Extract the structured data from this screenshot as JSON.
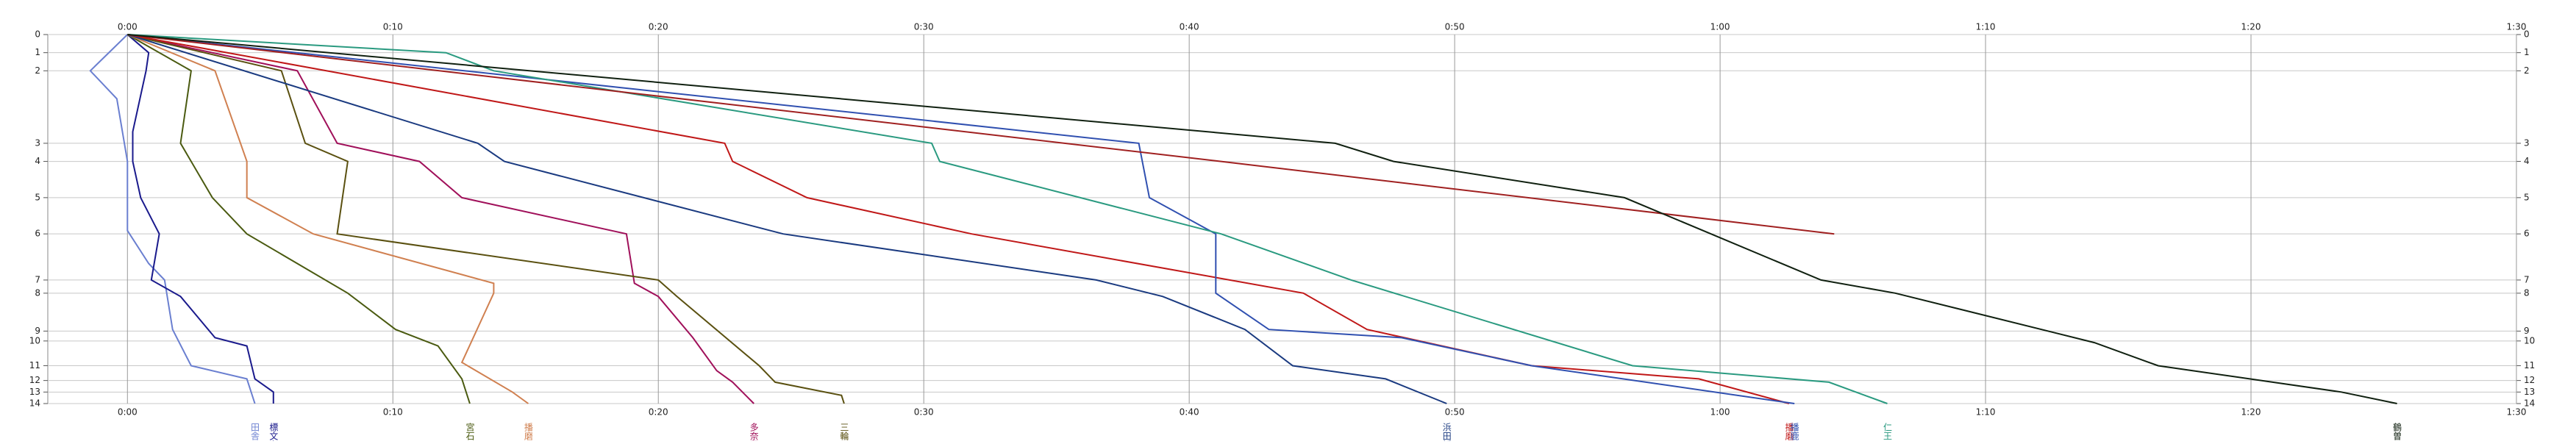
{
  "chart_data": {
    "type": "line",
    "xlim": [
      -3,
      90
    ],
    "xticks": [
      {
        "value": 0,
        "label": "0:00"
      },
      {
        "value": 10,
        "label": "0:10"
      },
      {
        "value": 20,
        "label": "0:20"
      },
      {
        "value": 30,
        "label": "0:30"
      },
      {
        "value": 40,
        "label": "0:40"
      },
      {
        "value": 50,
        "label": "0:50"
      },
      {
        "value": 60,
        "label": "1:00"
      },
      {
        "value": 70,
        "label": "1:10"
      },
      {
        "value": 80,
        "label": "1:20"
      },
      {
        "value": 90,
        "label": "1:30"
      }
    ],
    "ylim": [
      0,
      224
    ],
    "yticks": [
      0,
      {
        "value": 11,
        "label": "1"
      },
      {
        "value": 22,
        "label": "2"
      },
      {
        "value": 66,
        "label": "3"
      },
      {
        "value": 77,
        "label": "4"
      },
      {
        "value": 99,
        "label": "5"
      },
      {
        "value": 121,
        "label": "6"
      },
      {
        "value": 149,
        "label": "7"
      },
      {
        "value": 157,
        "label": "8"
      },
      {
        "value": 180,
        "label": "9"
      },
      {
        "value": 186,
        "label": "10"
      },
      {
        "value": 201,
        "label": "11"
      },
      {
        "value": 210,
        "label": "12"
      },
      {
        "value": 217,
        "label": "13"
      },
      {
        "value": 224,
        "label": "14"
      }
    ],
    "y_reversed": true,
    "grid": true,
    "series": [
      {
        "name": "田舎",
        "color": "#6a7fd0",
        "x": [
          0,
          -1.4,
          -0.4,
          0,
          0,
          0.8,
          1.4,
          1.7,
          2.4,
          4.5,
          4.8
        ],
        "values": [
          0,
          22,
          39,
          77,
          119,
          139,
          149,
          179,
          201,
          209,
          224
        ]
      },
      {
        "name": "標文奮",
        "color": "#1a1a8c",
        "x": [
          0,
          0.8,
          0.7,
          0.2,
          0.2,
          0.5,
          1.2,
          0.9,
          2.0,
          3.3,
          4.5,
          4.8,
          5.5,
          5.5
        ],
        "values": [
          0,
          11,
          22,
          59,
          77,
          99,
          121,
          149,
          159,
          184,
          189,
          209,
          217,
          224
        ]
      },
      {
        "name": "宮石",
        "color": "#4a5a10",
        "x": [
          0,
          2.4,
          2.0,
          3.2,
          4.5,
          8.3,
          10.1,
          11.7,
          12.6,
          12.9
        ],
        "values": [
          0,
          22,
          66,
          99,
          121,
          157,
          179,
          189,
          209,
          224
        ]
      },
      {
        "name": "播磨",
        "color": "#d08050",
        "x": [
          0,
          3.3,
          4.5,
          4.5,
          7.0,
          13.8,
          13.8,
          12.6,
          14.5,
          15.1
        ],
        "values": [
          0,
          22,
          77,
          99,
          121,
          151,
          157,
          199,
          217,
          224
        ]
      },
      {
        "name": "多奈閤",
        "color": "#a0105a",
        "x": [
          0,
          6.4,
          7.9,
          11.0,
          12.6,
          18.8,
          19.1,
          20.0,
          21.3,
          22.2,
          22.8,
          23.6
        ],
        "values": [
          0,
          22,
          66,
          77,
          99,
          121,
          151,
          159,
          184,
          204,
          211,
          224
        ]
      },
      {
        "name": "三輪",
        "color": "#5a5010",
        "x": [
          0,
          5.8,
          6.7,
          8.3,
          7.9,
          20.0,
          20.7,
          23.8,
          24.4,
          26.9,
          27.0
        ],
        "values": [
          0,
          22,
          66,
          77,
          121,
          149,
          159,
          201,
          211,
          219,
          224
        ]
      },
      {
        "name": "浜田幡",
        "color": "#1a3a80",
        "x": [
          0,
          13.2,
          14.2,
          24.7,
          36.5,
          39.0,
          42.1,
          43.9,
          47.4,
          49.7
        ],
        "values": [
          0,
          66,
          77,
          121,
          149,
          159,
          179,
          201,
          209,
          224
        ]
      },
      {
        "name": "播磨",
        "color": "#c01818",
        "x": [
          0,
          22.5,
          22.8,
          25.6,
          31.8,
          44.3,
          46.7,
          52.9,
          59.2,
          62.6
        ],
        "values": [
          0,
          66,
          77,
          99,
          121,
          157,
          179,
          201,
          209,
          224
        ]
      },
      {
        "name": "播鹿",
        "color": "#3050b0",
        "x": [
          0,
          38.1,
          38.5,
          41.0,
          41.0,
          43.0,
          48.0,
          52.9,
          62.8
        ],
        "values": [
          0,
          66,
          99,
          121,
          157,
          179,
          184,
          201,
          224
        ]
      },
      {
        "name": "仁王",
        "color": "#2a9a80",
        "x": [
          0,
          12.0,
          13.8,
          30.3,
          30.6,
          41.2,
          46.1,
          56.7,
          64.1,
          66.3
        ],
        "values": [
          0,
          11,
          22,
          66,
          77,
          121,
          149,
          201,
          211,
          224
        ]
      },
      {
        "color": "#a02020",
        "x": [
          0,
          41.2,
          64.3
        ],
        "values": [
          0,
          77,
          121
        ]
      },
      {
        "name": "鶴曽",
        "color": "#102010",
        "x": [
          0,
          45.5,
          47.7,
          56.4,
          63.8,
          66.6,
          74.1,
          76.5,
          83.4,
          85.5
        ],
        "values": [
          0,
          66,
          77,
          99,
          149,
          157,
          187,
          201,
          217,
          224
        ]
      }
    ]
  }
}
